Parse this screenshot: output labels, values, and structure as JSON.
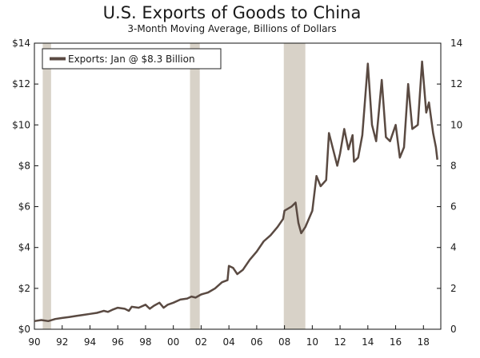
{
  "chart_data": {
    "type": "line",
    "title": "U.S. Exports of Goods to China",
    "subtitle": "3-Month Moving Average, Billions of Dollars",
    "xlabel": "",
    "ylabel": "",
    "xlim": [
      1990.0,
      2019.25
    ],
    "ylim": [
      0,
      14
    ],
    "y_ticks": [
      0,
      2,
      4,
      6,
      8,
      10,
      12,
      14
    ],
    "y_tick_labels_left": [
      "$0",
      "$2",
      "$4",
      "$6",
      "$8",
      "$10",
      "$12",
      "$14"
    ],
    "y_tick_labels_right": [
      "0",
      "2",
      "4",
      "6",
      "8",
      "10",
      "12",
      "14"
    ],
    "x_ticks": [
      1990,
      1992,
      1994,
      1996,
      1998,
      2000,
      2002,
      2004,
      2006,
      2008,
      2010,
      2012,
      2014,
      2016,
      2018
    ],
    "x_tick_labels": [
      "90",
      "92",
      "94",
      "96",
      "98",
      "00",
      "02",
      "04",
      "06",
      "08",
      "10",
      "12",
      "14",
      "16",
      "18"
    ],
    "grid": false,
    "legend_position": "top-left",
    "recessions": [
      {
        "start": 1990.6,
        "end": 1991.2
      },
      {
        "start": 2001.2,
        "end": 2001.9
      },
      {
        "start": 2007.95,
        "end": 2009.5
      }
    ],
    "series": [
      {
        "name": "Exports: Jan @ $8.3 Billion",
        "color": "#5a4a42",
        "points": [
          [
            1990.0,
            0.4
          ],
          [
            1990.5,
            0.45
          ],
          [
            1991.0,
            0.4
          ],
          [
            1991.5,
            0.5
          ],
          [
            1992.0,
            0.55
          ],
          [
            1992.5,
            0.6
          ],
          [
            1993.0,
            0.65
          ],
          [
            1993.5,
            0.7
          ],
          [
            1994.0,
            0.75
          ],
          [
            1994.5,
            0.8
          ],
          [
            1995.0,
            0.9
          ],
          [
            1995.3,
            0.85
          ],
          [
            1995.6,
            0.95
          ],
          [
            1996.0,
            1.05
          ],
          [
            1996.5,
            1.0
          ],
          [
            1996.8,
            0.9
          ],
          [
            1997.0,
            1.1
          ],
          [
            1997.5,
            1.05
          ],
          [
            1998.0,
            1.2
          ],
          [
            1998.3,
            1.0
          ],
          [
            1998.6,
            1.15
          ],
          [
            1999.0,
            1.3
          ],
          [
            1999.3,
            1.05
          ],
          [
            1999.6,
            1.2
          ],
          [
            2000.0,
            1.3
          ],
          [
            2000.5,
            1.45
          ],
          [
            2001.0,
            1.5
          ],
          [
            2001.3,
            1.6
          ],
          [
            2001.6,
            1.55
          ],
          [
            2002.0,
            1.7
          ],
          [
            2002.5,
            1.8
          ],
          [
            2003.0,
            2.0
          ],
          [
            2003.5,
            2.3
          ],
          [
            2003.9,
            2.4
          ],
          [
            2004.0,
            3.1
          ],
          [
            2004.3,
            3.0
          ],
          [
            2004.6,
            2.7
          ],
          [
            2005.0,
            2.9
          ],
          [
            2005.5,
            3.4
          ],
          [
            2006.0,
            3.8
          ],
          [
            2006.5,
            4.3
          ],
          [
            2007.0,
            4.6
          ],
          [
            2007.5,
            5.0
          ],
          [
            2007.9,
            5.4
          ],
          [
            2008.0,
            5.8
          ],
          [
            2008.5,
            6.0
          ],
          [
            2008.8,
            6.2
          ],
          [
            2009.0,
            5.2
          ],
          [
            2009.2,
            4.7
          ],
          [
            2009.5,
            5.0
          ],
          [
            2010.0,
            5.8
          ],
          [
            2010.3,
            7.5
          ],
          [
            2010.6,
            7.0
          ],
          [
            2011.0,
            7.3
          ],
          [
            2011.2,
            9.6
          ],
          [
            2011.5,
            8.8
          ],
          [
            2011.8,
            8.0
          ],
          [
            2012.0,
            8.6
          ],
          [
            2012.3,
            9.8
          ],
          [
            2012.6,
            8.8
          ],
          [
            2012.9,
            9.5
          ],
          [
            2013.0,
            8.2
          ],
          [
            2013.3,
            8.4
          ],
          [
            2013.6,
            9.5
          ],
          [
            2014.0,
            13.0
          ],
          [
            2014.3,
            10.0
          ],
          [
            2014.6,
            9.2
          ],
          [
            2015.0,
            12.2
          ],
          [
            2015.3,
            9.4
          ],
          [
            2015.6,
            9.2
          ],
          [
            2016.0,
            10.0
          ],
          [
            2016.3,
            8.4
          ],
          [
            2016.6,
            8.9
          ],
          [
            2016.9,
            12.0
          ],
          [
            2017.2,
            9.8
          ],
          [
            2017.6,
            10.0
          ],
          [
            2017.9,
            13.1
          ],
          [
            2018.2,
            10.6
          ],
          [
            2018.4,
            11.1
          ],
          [
            2018.7,
            9.6
          ],
          [
            2018.9,
            8.9
          ],
          [
            2019.0,
            8.3
          ]
        ]
      }
    ]
  }
}
